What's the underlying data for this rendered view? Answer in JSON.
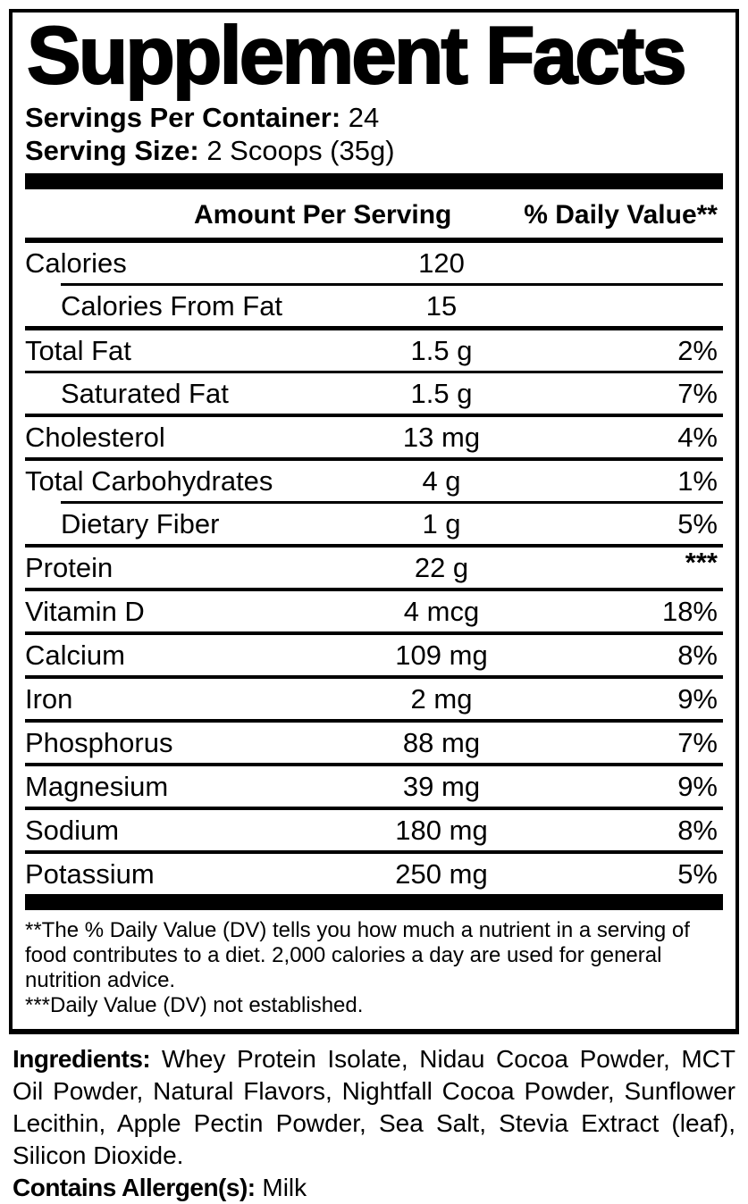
{
  "title": "Supplement Facts",
  "servings": {
    "label": "Servings Per Container:",
    "value": "24"
  },
  "serving_size": {
    "label": "Serving Size:",
    "value": "2 Scoops (35g)"
  },
  "table": {
    "headers": {
      "amount": "Amount Per Serving",
      "dv": "% Daily Value**"
    },
    "rows": [
      {
        "label": "Calories",
        "amount": "120",
        "dv": "",
        "indent": false,
        "sep": "none"
      },
      {
        "label": "Calories From Fat",
        "amount": "15",
        "dv": "",
        "indent": true,
        "sep": "thin-indent"
      },
      {
        "label": "Total Fat",
        "amount": "1.5 g",
        "dv": "2%",
        "indent": false,
        "sep": "thick"
      },
      {
        "label": "Saturated Fat",
        "amount": "1.5 g",
        "dv": "7%",
        "indent": true,
        "sep": "thin"
      },
      {
        "label": "Cholesterol",
        "amount": "13 mg",
        "dv": "4%",
        "indent": false,
        "sep": "regular"
      },
      {
        "label": "Total Carbohydrates",
        "amount": "4 g",
        "dv": "1%",
        "indent": false,
        "sep": "regular"
      },
      {
        "label": "Dietary Fiber",
        "amount": "1 g",
        "dv": "5%",
        "indent": true,
        "sep": "thin-indent"
      },
      {
        "label": "Protein",
        "amount": "22 g",
        "dv": "***",
        "indent": false,
        "sep": "regular"
      },
      {
        "label": "Vitamin D",
        "amount": "4 mcg",
        "dv": "18%",
        "indent": false,
        "sep": "regular"
      },
      {
        "label": "Calcium",
        "amount": "109 mg",
        "dv": "8%",
        "indent": false,
        "sep": "regular"
      },
      {
        "label": "Iron",
        "amount": "2 mg",
        "dv": "9%",
        "indent": false,
        "sep": "regular"
      },
      {
        "label": "Phosphorus",
        "amount": "88 mg",
        "dv": "7%",
        "indent": false,
        "sep": "regular"
      },
      {
        "label": "Magnesium",
        "amount": "39 mg",
        "dv": "9%",
        "indent": false,
        "sep": "regular"
      },
      {
        "label": "Sodium",
        "amount": "180 mg",
        "dv": "8%",
        "indent": false,
        "sep": "regular"
      },
      {
        "label": "Potassium",
        "amount": "250 mg",
        "dv": "5%",
        "indent": false,
        "sep": "regular"
      }
    ]
  },
  "footnotes": {
    "daily_value": "**The % Daily Value (DV) tells you how much a nutrient in a serving of food contributes to a diet. 2,000 calories a day are used for general nutrition advice.",
    "not_established": "***Daily Value (DV) not established."
  },
  "ingredients": {
    "label": "Ingredients:",
    "text": "Whey Protein Isolate, Nidau Cocoa Powder, MCT Oil Powder, Natural Flavors, Nightfall Cocoa Powder, Sunflower Lecithin, Apple Pectin Powder, Sea Salt, Stevia Extract (leaf), Silicon Dioxide."
  },
  "allergens": {
    "label": "Contains Allergen(s):",
    "value": "Milk"
  },
  "colors": {
    "ink": "#000000",
    "background": "#ffffff"
  }
}
